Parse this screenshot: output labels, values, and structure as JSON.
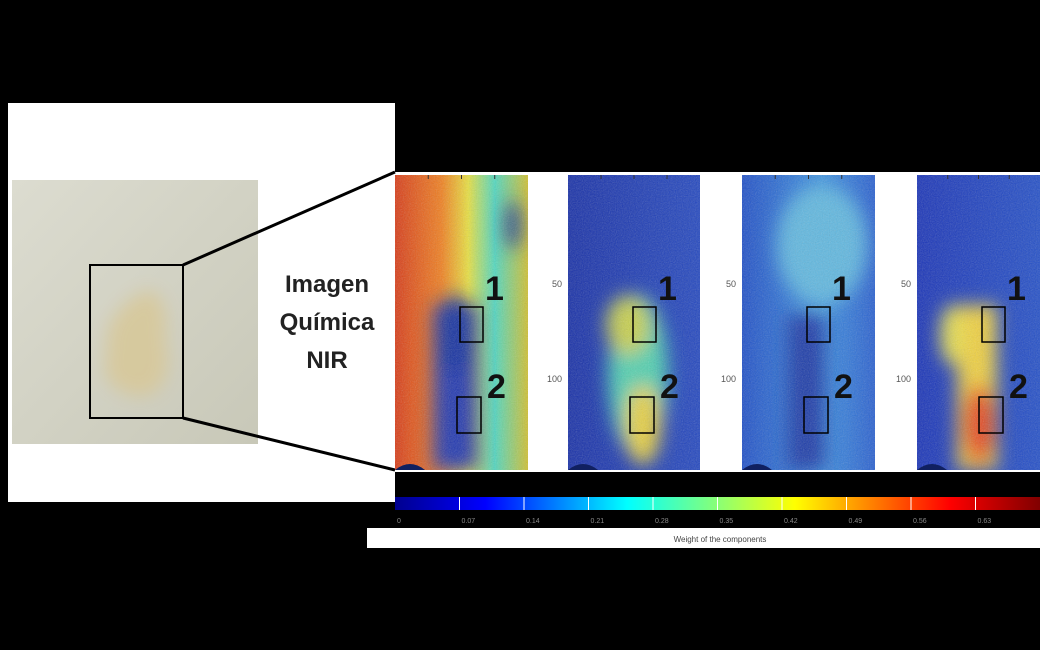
{
  "heading": {
    "lines": [
      "Imagen",
      "Química",
      "NIR"
    ]
  },
  "panels": [
    {
      "region_labels": [
        "1",
        "2"
      ]
    },
    {
      "region_labels": [
        "1",
        "2"
      ],
      "y_ticks": [
        "50",
        "100"
      ]
    },
    {
      "region_labels": [
        "1",
        "2"
      ],
      "y_ticks": [
        "50",
        "100"
      ]
    },
    {
      "region_labels": [
        "1",
        "2"
      ],
      "y_ticks": [
        "50",
        "100"
      ]
    }
  ],
  "colorbar": {
    "ticks": [
      "0",
      "0.07",
      "0.14",
      "0.21",
      "0.28",
      "0.35",
      "0.42",
      "0.49",
      "0.56",
      "0.63"
    ],
    "label": "Weight of the components"
  }
}
